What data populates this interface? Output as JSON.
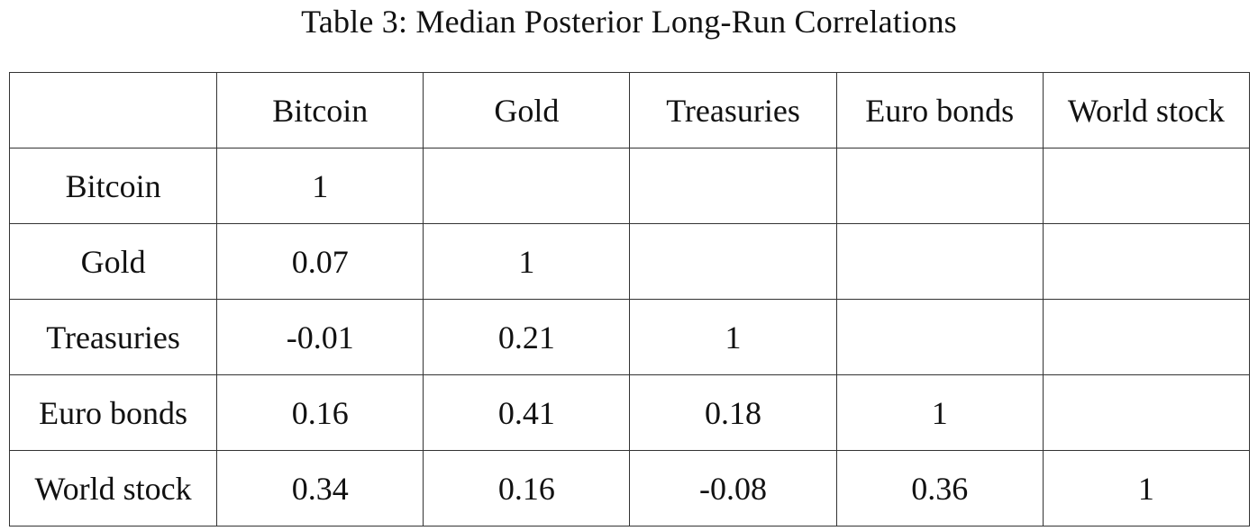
{
  "caption": "Table 3: Median Posterior Long-Run Correlations",
  "columns": [
    "",
    "Bitcoin",
    "Gold",
    "Treasuries",
    "Euro bonds",
    "World stock"
  ],
  "rows": [
    {
      "label": "Bitcoin",
      "cells": [
        "1",
        "",
        "",
        "",
        ""
      ]
    },
    {
      "label": "Gold",
      "cells": [
        "0.07",
        "1",
        "",
        "",
        ""
      ]
    },
    {
      "label": "Treasuries",
      "cells": [
        "-0.01",
        "0.21",
        "1",
        "",
        ""
      ]
    },
    {
      "label": "Euro bonds",
      "cells": [
        "0.16",
        "0.41",
        "0.18",
        "1",
        ""
      ]
    },
    {
      "label": "World stock",
      "cells": [
        "0.34",
        "0.16",
        "-0.08",
        "0.36",
        "1"
      ]
    }
  ]
}
